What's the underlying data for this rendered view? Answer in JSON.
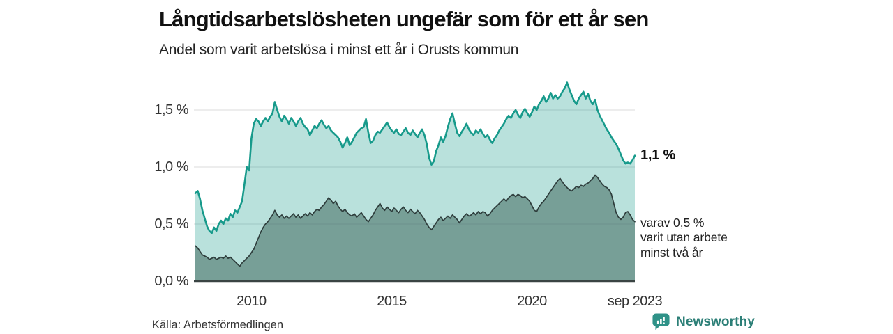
{
  "header": {
    "title": "Långtidsarbetslösheten ungefär som för ett år sen",
    "subtitle": "Andel som varit arbetslösa i minst ett år i Orusts kommun"
  },
  "source": {
    "label": "Källa: Arbetsförmedlingen"
  },
  "branding": {
    "name": "Newsworthy",
    "icon": "newsworthy-speech-bubble-bar-chart-icon",
    "icon_color": "#2f9288",
    "text_color": "#2c7f77"
  },
  "chart_data": {
    "type": "area",
    "title": "Långtidsarbetslösheten ungefär som för ett år sen",
    "subtitle": "Andel som varit arbetslösa i minst ett år i Orusts kommun",
    "unit": "%",
    "frequency": "monthly",
    "x_start": "2008-01",
    "x_end": "2023-09",
    "ylim": [
      0,
      1.8
    ],
    "grid": true,
    "grid_color": "#e2e2e2",
    "axis_color": "#3a4443",
    "y_ticks": [
      {
        "label": "0,0 %",
        "value": 0
      },
      {
        "label": "0,5 %",
        "value": 0.5
      },
      {
        "label": "1,0 %",
        "value": 1.0
      },
      {
        "label": "1,5 %",
        "value": 1.5
      }
    ],
    "x_ticks": [
      {
        "label": "2010",
        "month_index": 24
      },
      {
        "label": "2015",
        "month_index": 84
      },
      {
        "label": "2020",
        "month_index": 144
      },
      {
        "label": "sep 2023",
        "month_index": 188
      }
    ],
    "series": [
      {
        "name": "Andel som varit arbetslösa i minst ett år",
        "line_color": "#179a8b",
        "fill_rgba": "rgba(23,154,139,0.30)",
        "line_width": 2.6,
        "end_label": "1,1 %",
        "end_value": 1.1,
        "values": [
          0.77,
          0.79,
          0.72,
          0.62,
          0.55,
          0.48,
          0.44,
          0.42,
          0.47,
          0.44,
          0.5,
          0.53,
          0.5,
          0.55,
          0.53,
          0.59,
          0.56,
          0.62,
          0.6,
          0.65,
          0.7,
          0.85,
          1.0,
          0.97,
          1.25,
          1.38,
          1.42,
          1.4,
          1.36,
          1.4,
          1.43,
          1.4,
          1.44,
          1.47,
          1.57,
          1.5,
          1.44,
          1.4,
          1.45,
          1.42,
          1.38,
          1.43,
          1.4,
          1.36,
          1.4,
          1.43,
          1.38,
          1.35,
          1.33,
          1.28,
          1.32,
          1.36,
          1.34,
          1.38,
          1.41,
          1.37,
          1.34,
          1.36,
          1.32,
          1.3,
          1.28,
          1.26,
          1.22,
          1.17,
          1.21,
          1.26,
          1.19,
          1.22,
          1.26,
          1.3,
          1.32,
          1.34,
          1.35,
          1.42,
          1.3,
          1.21,
          1.23,
          1.28,
          1.31,
          1.3,
          1.33,
          1.36,
          1.39,
          1.35,
          1.32,
          1.3,
          1.33,
          1.29,
          1.28,
          1.31,
          1.34,
          1.3,
          1.28,
          1.32,
          1.29,
          1.26,
          1.3,
          1.33,
          1.28,
          1.2,
          1.08,
          1.02,
          1.05,
          1.14,
          1.19,
          1.26,
          1.22,
          1.27,
          1.35,
          1.42,
          1.47,
          1.38,
          1.3,
          1.27,
          1.31,
          1.34,
          1.38,
          1.33,
          1.3,
          1.28,
          1.32,
          1.3,
          1.33,
          1.29,
          1.26,
          1.28,
          1.24,
          1.21,
          1.25,
          1.28,
          1.32,
          1.35,
          1.38,
          1.42,
          1.45,
          1.43,
          1.47,
          1.5,
          1.46,
          1.43,
          1.48,
          1.51,
          1.47,
          1.44,
          1.48,
          1.53,
          1.5,
          1.55,
          1.58,
          1.62,
          1.57,
          1.6,
          1.65,
          1.6,
          1.63,
          1.6,
          1.62,
          1.66,
          1.69,
          1.74,
          1.68,
          1.63,
          1.58,
          1.55,
          1.6,
          1.63,
          1.66,
          1.6,
          1.64,
          1.58,
          1.55,
          1.59,
          1.5,
          1.45,
          1.41,
          1.37,
          1.33,
          1.3,
          1.26,
          1.23,
          1.2,
          1.16,
          1.11,
          1.06,
          1.03,
          1.04,
          1.03,
          1.06,
          1.1
        ]
      },
      {
        "name": "varav utan arbete minst två år",
        "line_color": "#2e3d3c",
        "fill_rgba": "rgba(59,98,89,0.52)",
        "line_width": 1.7,
        "end_label": "varav 0,5 %\nvarit utan arbete\nminst två år",
        "end_value": 0.5,
        "values": [
          0.31,
          0.29,
          0.26,
          0.23,
          0.22,
          0.21,
          0.19,
          0.2,
          0.21,
          0.19,
          0.2,
          0.21,
          0.2,
          0.22,
          0.2,
          0.21,
          0.19,
          0.17,
          0.15,
          0.13,
          0.16,
          0.18,
          0.2,
          0.22,
          0.25,
          0.28,
          0.33,
          0.38,
          0.43,
          0.47,
          0.5,
          0.52,
          0.55,
          0.58,
          0.62,
          0.58,
          0.56,
          0.58,
          0.55,
          0.57,
          0.55,
          0.57,
          0.59,
          0.56,
          0.58,
          0.55,
          0.57,
          0.59,
          0.57,
          0.6,
          0.58,
          0.61,
          0.63,
          0.62,
          0.65,
          0.67,
          0.7,
          0.73,
          0.71,
          0.68,
          0.7,
          0.66,
          0.63,
          0.61,
          0.63,
          0.6,
          0.58,
          0.57,
          0.59,
          0.56,
          0.58,
          0.6,
          0.57,
          0.54,
          0.52,
          0.55,
          0.58,
          0.62,
          0.65,
          0.68,
          0.64,
          0.62,
          0.65,
          0.63,
          0.61,
          0.64,
          0.62,
          0.6,
          0.63,
          0.65,
          0.62,
          0.6,
          0.63,
          0.61,
          0.59,
          0.62,
          0.6,
          0.57,
          0.54,
          0.5,
          0.47,
          0.45,
          0.48,
          0.51,
          0.54,
          0.56,
          0.53,
          0.55,
          0.57,
          0.55,
          0.58,
          0.56,
          0.54,
          0.51,
          0.54,
          0.57,
          0.59,
          0.57,
          0.58,
          0.6,
          0.58,
          0.61,
          0.59,
          0.61,
          0.6,
          0.57,
          0.59,
          0.62,
          0.64,
          0.66,
          0.68,
          0.7,
          0.72,
          0.7,
          0.73,
          0.75,
          0.76,
          0.74,
          0.76,
          0.75,
          0.73,
          0.74,
          0.72,
          0.7,
          0.66,
          0.62,
          0.61,
          0.65,
          0.68,
          0.7,
          0.73,
          0.76,
          0.79,
          0.82,
          0.85,
          0.88,
          0.9,
          0.87,
          0.84,
          0.82,
          0.8,
          0.79,
          0.81,
          0.83,
          0.82,
          0.84,
          0.83,
          0.85,
          0.86,
          0.88,
          0.9,
          0.93,
          0.91,
          0.88,
          0.85,
          0.83,
          0.82,
          0.8,
          0.76,
          0.68,
          0.6,
          0.56,
          0.54,
          0.56,
          0.6,
          0.61,
          0.58,
          0.54,
          0.52
        ]
      }
    ]
  }
}
